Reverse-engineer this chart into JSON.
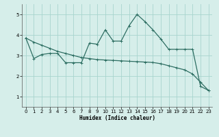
{
  "x": [
    0,
    1,
    2,
    3,
    4,
    5,
    6,
    7,
    8,
    9,
    10,
    11,
    12,
    13,
    14,
    15,
    16,
    17,
    18,
    19,
    20,
    21,
    22,
    23
  ],
  "line1": [
    3.85,
    2.85,
    3.05,
    3.1,
    3.1,
    2.65,
    2.65,
    2.65,
    3.6,
    3.55,
    4.25,
    3.7,
    3.7,
    4.45,
    5.0,
    4.65,
    4.25,
    3.8,
    3.3,
    3.3,
    3.3,
    3.3,
    1.5,
    1.3
  ],
  "line2": [
    3.85,
    3.65,
    3.5,
    3.35,
    3.2,
    3.1,
    3.0,
    2.9,
    2.85,
    2.8,
    2.78,
    2.76,
    2.74,
    2.72,
    2.7,
    2.68,
    2.66,
    2.6,
    2.5,
    2.4,
    2.3,
    2.1,
    1.7,
    1.3
  ],
  "color": "#2d6e62",
  "bg_color": "#d6eeea",
  "grid_color": "#a8d4ce",
  "xlabel": "Humidex (Indice chaleur)",
  "xlim": [
    -0.5,
    23.5
  ],
  "ylim": [
    0.5,
    5.5
  ],
  "yticks": [
    1,
    2,
    3,
    4,
    5
  ],
  "xticks": [
    0,
    1,
    2,
    3,
    4,
    5,
    6,
    7,
    8,
    9,
    10,
    11,
    12,
    13,
    14,
    15,
    16,
    17,
    18,
    19,
    20,
    21,
    22,
    23
  ]
}
